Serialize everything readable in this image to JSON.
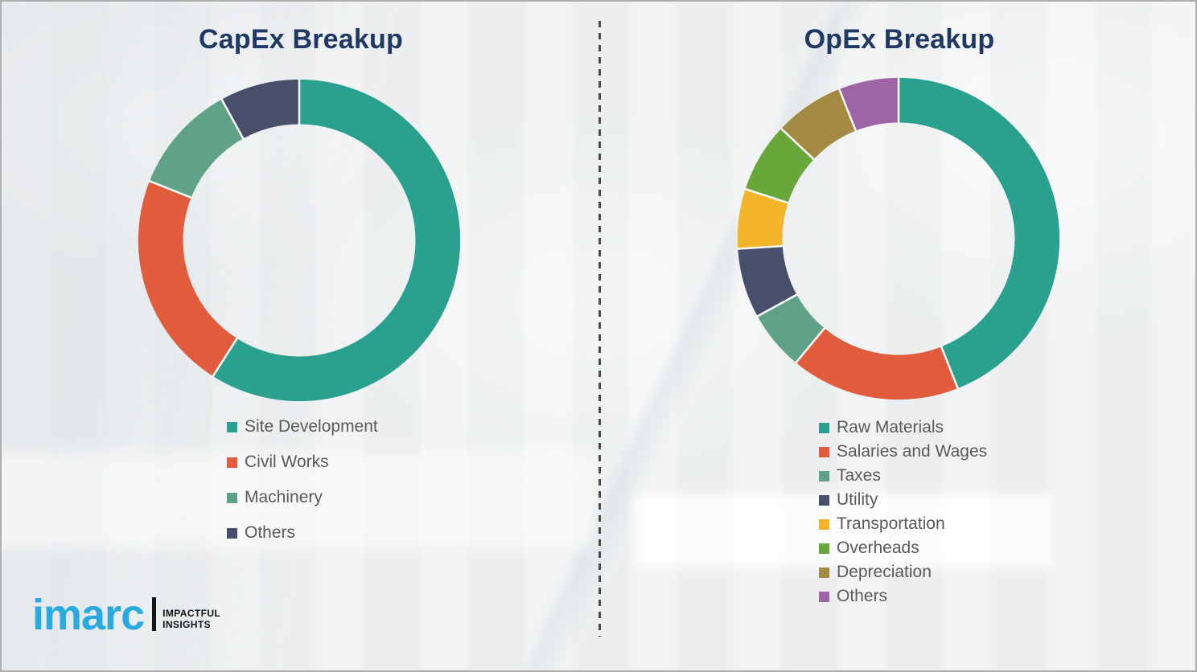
{
  "page": {
    "background_color": "#eff1f2",
    "divider_color": "#4b4b4b",
    "separator_color": "#fafaf7",
    "title_color": "#1f3864",
    "legend_text_color": "#595959"
  },
  "capex": {
    "title": "CapEx Breakup"
  },
  "opex": {
    "title": "OpEx Breakup"
  },
  "logo": {
    "brand": "imarc",
    "brand_color": "#29abe2",
    "tagline_line1": "IMPACTFUL",
    "tagline_line2": "INSIGHTS"
  },
  "chart_data": [
    {
      "type": "pie",
      "variant": "donut",
      "title": "CapEx Breakup",
      "start_angle_deg": 0,
      "direction": "clockwise",
      "legend_position": "bottom-left",
      "unit": "% (estimated, no data labels shown)",
      "categories": [
        "Site Development",
        "Civil Works",
        "Machinery",
        "Others"
      ],
      "values": [
        59,
        22,
        11,
        8
      ],
      "colors": [
        "#2aa08f",
        "#e05c3c",
        "#5fa287",
        "#474f6b"
      ]
    },
    {
      "type": "pie",
      "variant": "donut",
      "title": "OpEx Breakup",
      "start_angle_deg": 0,
      "direction": "clockwise",
      "legend_position": "bottom-left",
      "unit": "% (estimated, no data labels shown)",
      "categories": [
        "Raw Materials",
        "Salaries and Wages",
        "Taxes",
        "Utility",
        "Transportation",
        "Overheads",
        "Depreciation",
        "Others"
      ],
      "values": [
        44,
        17,
        6,
        7,
        6,
        7,
        7,
        6
      ],
      "colors": [
        "#2aa08f",
        "#e05c3c",
        "#5fa287",
        "#474f6b",
        "#f3b42a",
        "#68a83b",
        "#a38941",
        "#9d64a6"
      ]
    }
  ]
}
